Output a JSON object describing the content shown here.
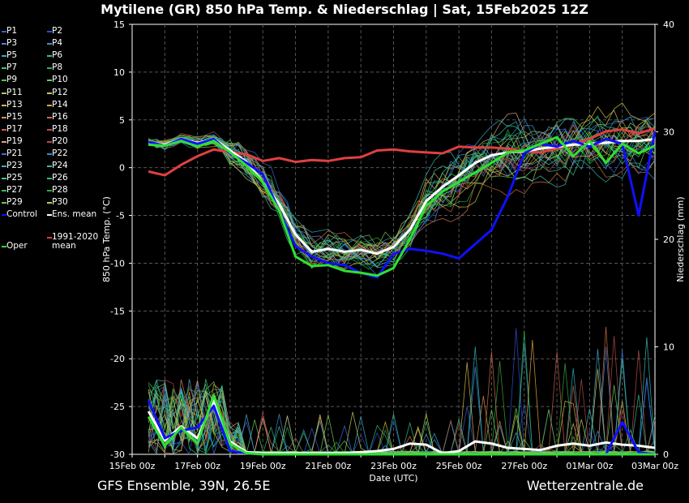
{
  "title": "Mytilene  (GR)  850 hPa Temp. & Niederschlag | Sat, 15Feb2025 12Z",
  "footer": {
    "left": "GFS Ensemble, 39N, 26.5E",
    "right": "Wetterzentrale.de"
  },
  "legend": [
    {
      "label": "P1",
      "color": "#3a5fcd"
    },
    {
      "label": "P2",
      "color": "#2f4fd0"
    },
    {
      "label": "P3",
      "color": "#4f7fd8"
    },
    {
      "label": "P4",
      "color": "#3b8fd0"
    },
    {
      "label": "P5",
      "color": "#2fb0c0"
    },
    {
      "label": "P6",
      "color": "#2fbf8f"
    },
    {
      "label": "P7",
      "color": "#3ac77a"
    },
    {
      "label": "P8",
      "color": "#22b84a"
    },
    {
      "label": "P9",
      "color": "#48c848"
    },
    {
      "label": "P10",
      "color": "#5fd35f"
    },
    {
      "label": "P11",
      "color": "#a8c85a"
    },
    {
      "label": "P12",
      "color": "#c8c860"
    },
    {
      "label": "P13",
      "color": "#d8b848"
    },
    {
      "label": "P14",
      "color": "#e0a840"
    },
    {
      "label": "P15",
      "color": "#d89050"
    },
    {
      "label": "P16",
      "color": "#d07040"
    },
    {
      "label": "P17",
      "color": "#c86048"
    },
    {
      "label": "P18",
      "color": "#b85050"
    },
    {
      "label": "P19",
      "color": "#d8a880"
    },
    {
      "label": "P20",
      "color": "#b84848"
    },
    {
      "label": "P21",
      "color": "#3a6fd8"
    },
    {
      "label": "P22",
      "color": "#2f8fd8"
    },
    {
      "label": "P23",
      "color": "#48a8c8"
    },
    {
      "label": "P24",
      "color": "#3ab8b0"
    },
    {
      "label": "P25",
      "color": "#3ac898"
    },
    {
      "label": "P26",
      "color": "#30c070"
    },
    {
      "label": "P27",
      "color": "#40b860"
    },
    {
      "label": "P28",
      "color": "#38a840"
    },
    {
      "label": "P29",
      "color": "#70c850"
    },
    {
      "label": "P30",
      "color": "#c8c848"
    },
    {
      "label": "Control",
      "color": "#1010ff"
    },
    {
      "label": "Ens. mean",
      "color": "#ffffff"
    },
    {
      "label": "1991-2020\nmean",
      "color": "#e04040"
    },
    {
      "label": "Oper",
      "color": "#30e030"
    }
  ],
  "chart_data": {
    "type": "line",
    "xlabel": "Date (UTC)",
    "ylabel_left": "850 hPa Temp. (°C)",
    "ylabel_right": "Niederschlag (mm)",
    "x_ticks": [
      "15Feb 00z",
      "17Feb 00z",
      "19Feb 00z",
      "21Feb 00z",
      "23Feb 00z",
      "25Feb 00z",
      "27Feb 00z",
      "01Mar 00z",
      "03Mar 00z"
    ],
    "x_range_days": [
      0,
      16
    ],
    "y_left_range": [
      -30,
      15
    ],
    "y_left_ticks": [
      15,
      10,
      5,
      0,
      -5,
      -10,
      -15,
      -20,
      -25,
      -30
    ],
    "y_right_range": [
      0,
      40
    ],
    "y_right_ticks": [
      40,
      30,
      20,
      10,
      0
    ],
    "grid": true,
    "series": [
      {
        "name": "1991-2020 mean",
        "color": "#e04040",
        "width": 3,
        "x": [
          0.5,
          1,
          1.5,
          2,
          2.5,
          3,
          3.5,
          4,
          4.5,
          5,
          5.5,
          6,
          6.5,
          7,
          7.5,
          8,
          8.5,
          9,
          9.5,
          10,
          10.5,
          11,
          11.5,
          12,
          12.5,
          13,
          13.5,
          14,
          14.5,
          15,
          15.5,
          16
        ],
        "y": [
          -0.4,
          -0.8,
          0.3,
          1.2,
          1.9,
          1.6,
          1.4,
          0.7,
          1.0,
          0.6,
          0.8,
          0.7,
          1.0,
          1.1,
          1.8,
          1.9,
          1.7,
          1.6,
          1.5,
          2.2,
          2.1,
          2.1,
          2.0,
          1.7,
          1.6,
          2.0,
          2.4,
          3.0,
          3.8,
          4.0,
          3.6,
          4.1
        ]
      },
      {
        "name": "Ens. mean",
        "color": "#ffffff",
        "width": 3,
        "x": [
          0.5,
          1,
          1.5,
          2,
          2.5,
          3,
          3.5,
          4,
          4.5,
          5,
          5.5,
          6,
          6.5,
          7,
          7.5,
          8,
          8.5,
          9,
          9.5,
          10,
          10.5,
          11,
          11.5,
          12,
          12.5,
          13,
          13.5,
          14,
          14.5,
          15,
          15.5,
          16
        ],
        "y": [
          2.6,
          2.4,
          3.0,
          2.6,
          3.0,
          1.8,
          0.6,
          -1.5,
          -3.8,
          -7.0,
          -8.8,
          -8.5,
          -8.8,
          -8.6,
          -9.0,
          -8.3,
          -6.5,
          -3.5,
          -2.0,
          -0.8,
          0.5,
          1.3,
          1.6,
          1.7,
          2.0,
          2.2,
          2.4,
          2.5,
          2.6,
          2.8,
          2.8,
          3.0
        ]
      },
      {
        "name": "Control",
        "color": "#1010ff",
        "width": 3,
        "x": [
          0.5,
          1,
          1.5,
          2,
          2.5,
          3,
          3.5,
          4,
          4.5,
          5,
          5.5,
          6,
          6.5,
          7,
          7.5,
          8,
          8.5,
          9,
          9.5,
          10,
          10.5,
          11,
          11.5,
          12,
          12.5,
          13,
          13.5,
          14,
          14.5,
          15,
          15.5,
          16
        ],
        "y": [
          2.7,
          2.3,
          3.0,
          2.5,
          3.0,
          1.5,
          0.5,
          -0.7,
          -4.5,
          -8.2,
          -9.3,
          -10.0,
          -10.2,
          -11.0,
          -11.5,
          -9.0,
          -8.5,
          -8.7,
          -9.0,
          -9.5,
          -8.0,
          -6.5,
          -3.0,
          1.5,
          2.5,
          2.2,
          2.8,
          2.2,
          3.0,
          2.5,
          -5.0,
          3.8
        ]
      },
      {
        "name": "Oper",
        "color": "#30e030",
        "width": 3,
        "x": [
          0.5,
          1,
          1.5,
          2,
          2.5,
          3,
          3.5,
          4,
          4.5,
          5,
          5.5,
          6,
          6.5,
          7,
          7.5,
          8,
          8.5,
          9,
          9.5,
          10,
          10.5,
          11,
          11.5,
          12,
          12.5,
          13,
          13.5,
          14,
          14.5,
          15,
          15.5,
          16
        ],
        "y": [
          2.4,
          2.3,
          2.8,
          2.2,
          2.8,
          1.6,
          0.2,
          -1.5,
          -4.5,
          -9.3,
          -10.3,
          -10.2,
          -10.8,
          -11.0,
          -11.3,
          -10.5,
          -7.5,
          -4.0,
          -2.5,
          -1.5,
          -0.5,
          0.5,
          1.6,
          1.8,
          2.5,
          3.2,
          1.2,
          2.8,
          0.5,
          2.5,
          1.5,
          2.3
        ]
      },
      {
        "name": "Ens. mean precip",
        "color": "#ffffff",
        "width": 3,
        "axis": "right",
        "x": [
          0.5,
          1,
          1.5,
          2,
          2.5,
          3,
          3.5,
          4,
          4.5,
          5,
          5.5,
          6,
          6.5,
          7,
          7.5,
          8,
          8.5,
          9,
          9.5,
          10,
          10.5,
          11,
          11.5,
          12,
          12.5,
          13,
          13.5,
          14,
          14.5,
          15,
          15.5,
          16
        ],
        "y": [
          4.0,
          1.3,
          2.6,
          1.5,
          5.0,
          1.2,
          0.2,
          0.1,
          0.1,
          0.1,
          0.1,
          0.1,
          0.1,
          0.2,
          0.3,
          0.5,
          1.0,
          0.9,
          0.1,
          0.3,
          1.2,
          1.0,
          0.6,
          0.5,
          0.4,
          0.8,
          1.0,
          0.8,
          1.1,
          0.9,
          0.8,
          0.6
        ]
      },
      {
        "name": "Control precip",
        "color": "#1010ff",
        "width": 3,
        "axis": "right",
        "x": [
          0.5,
          1,
          1.5,
          2,
          2.5,
          3,
          3.5,
          4,
          4.5,
          5,
          5.5,
          6,
          6.5,
          7,
          7.5,
          8,
          8.5,
          9,
          9.5,
          10,
          10.5,
          11,
          11.5,
          12,
          12.5,
          13,
          13.5,
          14,
          14.5,
          15,
          15.5,
          16
        ],
        "y": [
          5.0,
          1.5,
          2.2,
          2.5,
          4.5,
          0.3,
          0.1,
          0.0,
          0.0,
          0.0,
          0.0,
          0.0,
          0.0,
          0.0,
          0.0,
          0.0,
          0.0,
          0.0,
          0.0,
          0.0,
          0.0,
          0.0,
          0.0,
          0.0,
          0.0,
          0.0,
          0.0,
          0.0,
          0.0,
          3.0,
          0.2,
          0.0
        ]
      },
      {
        "name": "Oper precip",
        "color": "#30e030",
        "width": 3,
        "axis": "right",
        "x": [
          0.5,
          1,
          1.5,
          2,
          2.5,
          3,
          3.5,
          4,
          4.5,
          5,
          5.5,
          6,
          6.5,
          7,
          7.5,
          8,
          8.5,
          9,
          9.5,
          10,
          10.5,
          11,
          11.5,
          12,
          12.5,
          13,
          13.5,
          14,
          14.5,
          15,
          15.5,
          16
        ],
        "y": [
          3.5,
          0.8,
          2.5,
          1.0,
          5.5,
          1.0,
          0.1,
          0.0,
          0.0,
          0.0,
          0.0,
          0.0,
          0.0,
          0.0,
          0.0,
          0.0,
          0.0,
          0.0,
          0.0,
          0.0,
          0.0,
          0.0,
          0.0,
          0.0,
          0.0,
          0.0,
          0.0,
          0.0,
          0.0,
          0.0,
          0.0,
          0.0
        ]
      }
    ]
  }
}
